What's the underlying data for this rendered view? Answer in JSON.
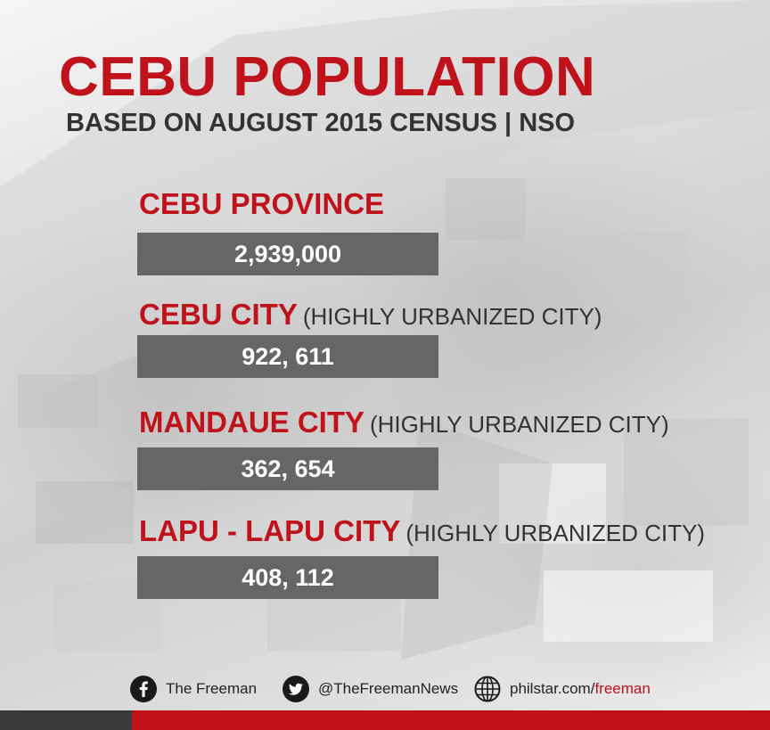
{
  "header": {
    "title": "CEBU POPULATION",
    "subtitle": "BASED ON AUGUST 2015 CENSUS | NSO"
  },
  "entries": [
    {
      "name": "CEBU PROVINCE",
      "type": "",
      "population": "2,939,000"
    },
    {
      "name": "CEBU CITY",
      "type": "(HIGHLY URBANIZED CITY)",
      "population": "922, 611"
    },
    {
      "name": "MANDAUE CITY",
      "type": "(HIGHLY URBANIZED CITY)",
      "population": "362, 654"
    },
    {
      "name": "LAPU - LAPU CITY",
      "type": "(HIGHLY URBANIZED CITY)",
      "population": "408, 112"
    }
  ],
  "footer": {
    "facebook": {
      "icon": "facebook-icon",
      "label": "The Freeman"
    },
    "twitter": {
      "icon": "twitter-icon",
      "label": "@TheFreemanNews"
    },
    "web": {
      "icon": "globe-icon",
      "label_prefix": "philstar.com/",
      "label_accent": "freeman"
    }
  },
  "colors": {
    "accent_red": "#c0121b",
    "bar_gray": "#666666",
    "text_dark": "#333333",
    "strip_dark": "#3a3a3a"
  }
}
